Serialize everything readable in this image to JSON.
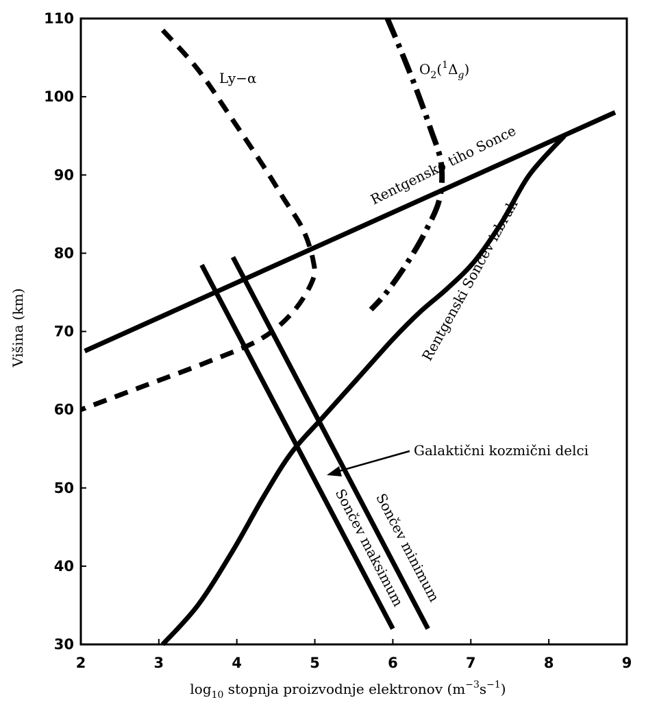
{
  "chart_data": {
    "type": "line",
    "title": "",
    "xlabel": "log₁₀ stopnja proizvodnje elektronov (m⁻³s⁻¹)",
    "xlabel_parts": {
      "pre": "log",
      "sub": "10",
      "mid": " stopnja proizvodnje elektronov (m",
      "sup1": "−3",
      "mid2": "s",
      "sup2": "−1",
      "post": ")"
    },
    "ylabel": "Višina (km)",
    "xlim": [
      2,
      9
    ],
    "ylim": [
      30,
      110
    ],
    "xticks": [
      "2",
      "3",
      "4",
      "5",
      "6",
      "7",
      "8",
      "9"
    ],
    "yticks": [
      "30",
      "40",
      "50",
      "60",
      "70",
      "80",
      "90",
      "100",
      "110"
    ],
    "grid": false,
    "series": [
      {
        "name": "Ly−α",
        "label_parts": {
          "text": "Ly−α"
        },
        "style": "dashed",
        "points": [
          [
            3.05,
            108.5
          ],
          [
            3.5,
            103.5
          ],
          [
            3.95,
            97
          ],
          [
            4.35,
            91
          ],
          [
            4.6,
            87
          ],
          [
            4.85,
            83
          ],
          [
            4.98,
            79
          ],
          [
            4.97,
            76.5
          ],
          [
            4.72,
            72.5
          ],
          [
            4.3,
            69
          ],
          [
            3.6,
            66
          ],
          [
            2.8,
            63
          ],
          [
            2.0,
            60
          ]
        ]
      },
      {
        "name": "O₂(¹Δg)",
        "label_parts": {
          "pre": "O",
          "sub1": "2",
          "mid": "(",
          "sup": "1",
          "mid2": "Δ",
          "sub2": "g",
          "post": ")"
        },
        "style": "dashdot",
        "points": [
          [
            5.93,
            110
          ],
          [
            6.1,
            106
          ],
          [
            6.3,
            101
          ],
          [
            6.48,
            96
          ],
          [
            6.62,
            91.5
          ],
          [
            6.6,
            87
          ],
          [
            6.43,
            83
          ],
          [
            6.2,
            79
          ],
          [
            5.92,
            75
          ],
          [
            5.72,
            72.8
          ]
        ]
      },
      {
        "name": "Rentgensko tiho Sonce",
        "style": "solid",
        "points": [
          [
            2.05,
            67.5
          ],
          [
            8.85,
            98
          ]
        ]
      },
      {
        "name": "Rentgenski Sončev izbruh",
        "style": "solid",
        "points": [
          [
            3.05,
            30
          ],
          [
            3.5,
            35
          ],
          [
            3.95,
            42
          ],
          [
            4.35,
            49
          ],
          [
            4.7,
            54.5
          ],
          [
            5.1,
            59
          ],
          [
            5.55,
            64
          ],
          [
            6.0,
            69
          ],
          [
            6.35,
            72.5
          ],
          [
            6.7,
            75.5
          ],
          [
            7.05,
            79
          ],
          [
            7.4,
            84
          ],
          [
            7.75,
            90
          ],
          [
            8.2,
            95
          ]
        ]
      },
      {
        "name": "Sončev maksimum",
        "style": "solid",
        "points": [
          [
            3.55,
            78.5
          ],
          [
            6.0,
            32
          ]
        ]
      },
      {
        "name": "Sončev minimum",
        "style": "solid",
        "points": [
          [
            3.95,
            79.5
          ],
          [
            6.45,
            32
          ]
        ]
      }
    ],
    "annotations": [
      {
        "text": "Galaktični kozmični delci",
        "arrow_to": [
          5.15,
          51.5
        ]
      }
    ],
    "colors": {
      "line": "#000000",
      "background": "#ffffff"
    }
  }
}
